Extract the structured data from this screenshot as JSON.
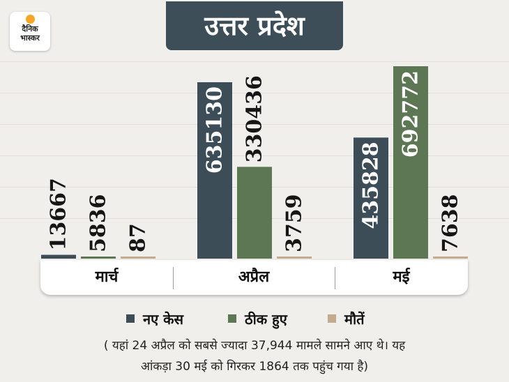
{
  "logo": {
    "line1": "दैनिक",
    "line2": "भास्कर"
  },
  "title": "उत्तर प्रदेश",
  "chart_data": {
    "type": "bar",
    "categories": [
      "मार्च",
      "अप्रैल",
      "मई"
    ],
    "series": [
      {
        "name": "नए केस",
        "values": [
          13667,
          635130,
          435828
        ]
      },
      {
        "name": "ठीक हुए",
        "values": [
          5836,
          330436,
          692772
        ]
      },
      {
        "name": "मौतें",
        "values": [
          87,
          3759,
          7638
        ]
      }
    ],
    "colors": [
      "#3d4d57",
      "#5d7754",
      "#c3ab8e"
    ],
    "data_labels": true,
    "legend_position": "bottom",
    "grid": false
  },
  "note": {
    "line1": "( यहां 24 अप्रैल को सबसे ज्यादा 37,944 मामले सामने आए थे। यह",
    "line2": "आंकड़ा 30 मई को गिरकर 1864 तक पहुंच गया है)"
  }
}
